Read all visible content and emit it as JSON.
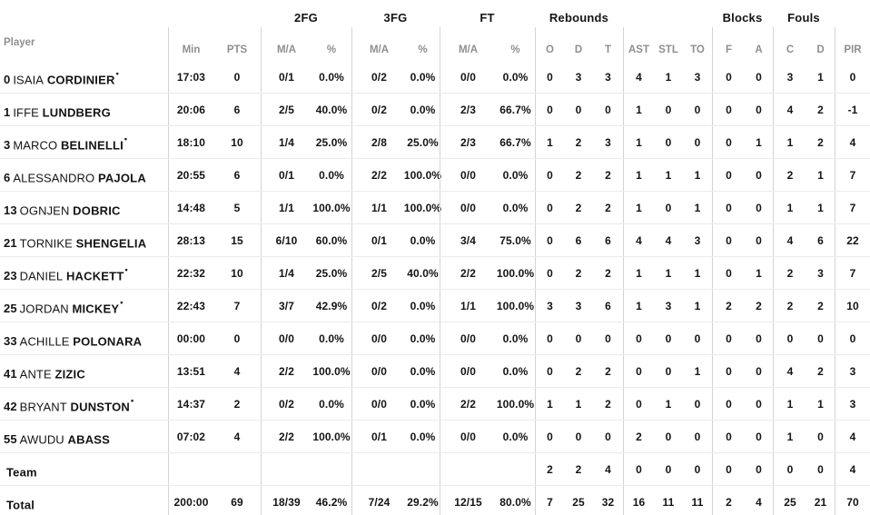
{
  "meta": {
    "starter_mark": "•"
  },
  "colors": {
    "background": "#ffffff",
    "text": "#141414",
    "muted": "#8f8f8f",
    "line_vertical": "#d4d4d4",
    "line_horizontal": "#ebebeb"
  },
  "chart_data": {
    "type": "table",
    "group_headers": [
      "2FG",
      "3FG",
      "FT",
      "Rebounds",
      "Blocks",
      "Fouls"
    ],
    "column_headers": [
      "Player",
      "Min",
      "PTS",
      "M/A",
      "%",
      "M/A",
      "%",
      "M/A",
      "%",
      "O",
      "D",
      "T",
      "AST",
      "STL",
      "TO",
      "F",
      "A",
      "C",
      "D",
      "PIR"
    ],
    "rows": [
      {
        "num": "0",
        "first": "ISAIA",
        "last": "CORDINIER",
        "starter": true,
        "min": "17:03",
        "pts": "0",
        "m2": "0/1",
        "p2": "0.0%",
        "m3": "0/2",
        "p3": "0.0%",
        "mf": "0/0",
        "pf": "0.0%",
        "ro": "0",
        "rd": "3",
        "rt": "3",
        "ast": "4",
        "stl": "1",
        "to": "3",
        "bf": "0",
        "ba": "0",
        "fc": "3",
        "fd": "1",
        "pir": "0"
      },
      {
        "num": "1",
        "first": "IFFE",
        "last": "LUNDBERG",
        "starter": false,
        "min": "20:06",
        "pts": "6",
        "m2": "2/5",
        "p2": "40.0%",
        "m3": "0/2",
        "p3": "0.0%",
        "mf": "2/3",
        "pf": "66.7%",
        "ro": "0",
        "rd": "0",
        "rt": "0",
        "ast": "1",
        "stl": "0",
        "to": "0",
        "bf": "0",
        "ba": "0",
        "fc": "4",
        "fd": "2",
        "pir": "-1"
      },
      {
        "num": "3",
        "first": "MARCO",
        "last": "BELINELLI",
        "starter": true,
        "min": "18:10",
        "pts": "10",
        "m2": "1/4",
        "p2": "25.0%",
        "m3": "2/8",
        "p3": "25.0%",
        "mf": "2/3",
        "pf": "66.7%",
        "ro": "1",
        "rd": "2",
        "rt": "3",
        "ast": "1",
        "stl": "0",
        "to": "0",
        "bf": "0",
        "ba": "1",
        "fc": "1",
        "fd": "2",
        "pir": "4"
      },
      {
        "num": "6",
        "first": "ALESSANDRO",
        "last": "PAJOLA",
        "starter": false,
        "min": "20:55",
        "pts": "6",
        "m2": "0/1",
        "p2": "0.0%",
        "m3": "2/2",
        "p3": "100.0%",
        "mf": "0/0",
        "pf": "0.0%",
        "ro": "0",
        "rd": "2",
        "rt": "2",
        "ast": "1",
        "stl": "1",
        "to": "1",
        "bf": "0",
        "ba": "0",
        "fc": "2",
        "fd": "1",
        "pir": "7"
      },
      {
        "num": "13",
        "first": "OGNJEN",
        "last": "DOBRIC",
        "starter": false,
        "min": "14:48",
        "pts": "5",
        "m2": "1/1",
        "p2": "100.0%",
        "m3": "1/1",
        "p3": "100.0%",
        "mf": "0/0",
        "pf": "0.0%",
        "ro": "0",
        "rd": "2",
        "rt": "2",
        "ast": "1",
        "stl": "0",
        "to": "1",
        "bf": "0",
        "ba": "0",
        "fc": "1",
        "fd": "1",
        "pir": "7"
      },
      {
        "num": "21",
        "first": "TORNIKE",
        "last": "SHENGELIA",
        "starter": false,
        "min": "28:13",
        "pts": "15",
        "m2": "6/10",
        "p2": "60.0%",
        "m3": "0/1",
        "p3": "0.0%",
        "mf": "3/4",
        "pf": "75.0%",
        "ro": "0",
        "rd": "6",
        "rt": "6",
        "ast": "4",
        "stl": "4",
        "to": "3",
        "bf": "0",
        "ba": "0",
        "fc": "4",
        "fd": "6",
        "pir": "22"
      },
      {
        "num": "23",
        "first": "DANIEL",
        "last": "HACKETT",
        "starter": true,
        "min": "22:32",
        "pts": "10",
        "m2": "1/4",
        "p2": "25.0%",
        "m3": "2/5",
        "p3": "40.0%",
        "mf": "2/2",
        "pf": "100.0%",
        "ro": "0",
        "rd": "2",
        "rt": "2",
        "ast": "1",
        "stl": "1",
        "to": "1",
        "bf": "0",
        "ba": "1",
        "fc": "2",
        "fd": "3",
        "pir": "7"
      },
      {
        "num": "25",
        "first": "JORDAN",
        "last": "MICKEY",
        "starter": true,
        "min": "22:43",
        "pts": "7",
        "m2": "3/7",
        "p2": "42.9%",
        "m3": "0/2",
        "p3": "0.0%",
        "mf": "1/1",
        "pf": "100.0%",
        "ro": "3",
        "rd": "3",
        "rt": "6",
        "ast": "1",
        "stl": "3",
        "to": "1",
        "bf": "2",
        "ba": "2",
        "fc": "2",
        "fd": "2",
        "pir": "10"
      },
      {
        "num": "33",
        "first": "ACHILLE",
        "last": "POLONARA",
        "starter": false,
        "min": "00:00",
        "pts": "0",
        "m2": "0/0",
        "p2": "0.0%",
        "m3": "0/0",
        "p3": "0.0%",
        "mf": "0/0",
        "pf": "0.0%",
        "ro": "0",
        "rd": "0",
        "rt": "0",
        "ast": "0",
        "stl": "0",
        "to": "0",
        "bf": "0",
        "ba": "0",
        "fc": "0",
        "fd": "0",
        "pir": "0"
      },
      {
        "num": "41",
        "first": "ANTE",
        "last": "ZIZIC",
        "starter": false,
        "min": "13:51",
        "pts": "4",
        "m2": "2/2",
        "p2": "100.0%",
        "m3": "0/0",
        "p3": "0.0%",
        "mf": "0/0",
        "pf": "0.0%",
        "ro": "0",
        "rd": "2",
        "rt": "2",
        "ast": "0",
        "stl": "0",
        "to": "1",
        "bf": "0",
        "ba": "0",
        "fc": "4",
        "fd": "2",
        "pir": "3"
      },
      {
        "num": "42",
        "first": "BRYANT",
        "last": "DUNSTON",
        "starter": true,
        "min": "14:37",
        "pts": "2",
        "m2": "0/2",
        "p2": "0.0%",
        "m3": "0/0",
        "p3": "0.0%",
        "mf": "2/2",
        "pf": "100.0%",
        "ro": "1",
        "rd": "1",
        "rt": "2",
        "ast": "0",
        "stl": "1",
        "to": "0",
        "bf": "0",
        "ba": "0",
        "fc": "1",
        "fd": "1",
        "pir": "3"
      },
      {
        "num": "55",
        "first": "AWUDU",
        "last": "ABASS",
        "starter": false,
        "min": "07:02",
        "pts": "4",
        "m2": "2/2",
        "p2": "100.0%",
        "m3": "0/1",
        "p3": "0.0%",
        "mf": "0/0",
        "pf": "0.0%",
        "ro": "0",
        "rd": "0",
        "rt": "0",
        "ast": "2",
        "stl": "0",
        "to": "0",
        "bf": "0",
        "ba": "0",
        "fc": "1",
        "fd": "0",
        "pir": "4"
      },
      {
        "label": "Team",
        "min": "",
        "pts": "",
        "m2": "",
        "p2": "",
        "m3": "",
        "p3": "",
        "mf": "",
        "pf": "",
        "ro": "2",
        "rd": "2",
        "rt": "4",
        "ast": "0",
        "stl": "0",
        "to": "0",
        "bf": "0",
        "ba": "0",
        "fc": "0",
        "fd": "0",
        "pir": "4"
      },
      {
        "label": "Total",
        "min": "200:00",
        "pts": "69",
        "m2": "18/39",
        "p2": "46.2%",
        "m3": "7/24",
        "p3": "29.2%",
        "mf": "12/15",
        "pf": "80.0%",
        "ro": "7",
        "rd": "25",
        "rt": "32",
        "ast": "16",
        "stl": "11",
        "to": "11",
        "bf": "2",
        "ba": "4",
        "fc": "25",
        "fd": "21",
        "pir": "70"
      }
    ]
  }
}
